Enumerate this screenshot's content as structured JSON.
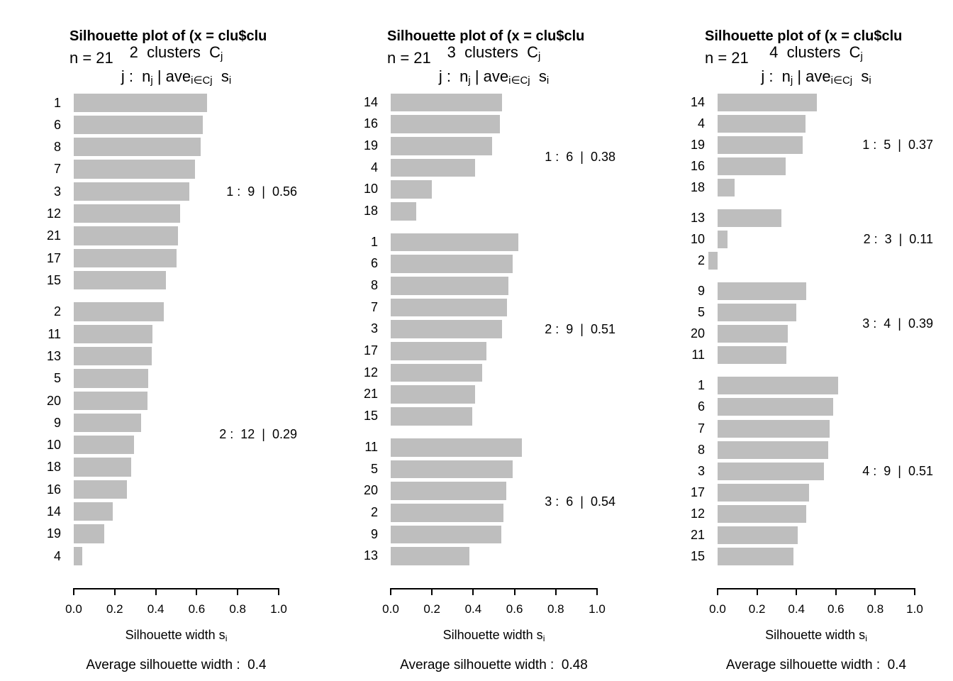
{
  "chart_data": {
    "type": "bar",
    "orientation": "horizontal",
    "panels": [
      {
        "title": "Silhouette plot of (x = clu$clu",
        "n_label": "n = 21",
        "k_label_parts": [
          {
            "t": "2  clusters  C"
          },
          {
            "t": "j",
            "sub": true
          }
        ],
        "header_parts": [
          {
            "t": "j :  n"
          },
          {
            "t": "j",
            "sub": true
          },
          {
            "t": " | ave"
          },
          {
            "t": "i∈Cj",
            "sub": true
          },
          {
            "t": "  s"
          },
          {
            "t": "i",
            "sub": true
          }
        ],
        "xlabel_parts": [
          {
            "t": "Silhouette width s"
          },
          {
            "t": "i",
            "sub": true
          }
        ],
        "avg_label": "Average silhouette width :  0.4",
        "xlim": [
          0,
          1
        ],
        "ticks": [
          "0.0",
          "0.2",
          "0.4",
          "0.6",
          "0.8",
          "1.0"
        ],
        "clusters": [
          {
            "j": 1,
            "n": 9,
            "avg": 0.56,
            "annotation": "1 :  9  |  0.56",
            "items": [
              {
                "label": "1",
                "value": 0.65
              },
              {
                "label": "6",
                "value": 0.63
              },
              {
                "label": "8",
                "value": 0.62
              },
              {
                "label": "7",
                "value": 0.59
              },
              {
                "label": "3",
                "value": 0.565
              },
              {
                "label": "12",
                "value": 0.52
              },
              {
                "label": "21",
                "value": 0.51
              },
              {
                "label": "17",
                "value": 0.5
              },
              {
                "label": "15",
                "value": 0.45
              }
            ]
          },
          {
            "j": 2,
            "n": 12,
            "avg": 0.29,
            "annotation": "2 :  12  |  0.29",
            "items": [
              {
                "label": "2",
                "value": 0.44
              },
              {
                "label": "11",
                "value": 0.385
              },
              {
                "label": "13",
                "value": 0.38
              },
              {
                "label": "5",
                "value": 0.365
              },
              {
                "label": "20",
                "value": 0.36
              },
              {
                "label": "9",
                "value": 0.33
              },
              {
                "label": "10",
                "value": 0.295
              },
              {
                "label": "18",
                "value": 0.28
              },
              {
                "label": "16",
                "value": 0.26
              },
              {
                "label": "14",
                "value": 0.19
              },
              {
                "label": "19",
                "value": 0.15
              },
              {
                "label": "4",
                "value": 0.04
              }
            ]
          }
        ]
      },
      {
        "title": "Silhouette plot of (x = clu$clu",
        "n_label": "n = 21",
        "k_label_parts": [
          {
            "t": "3  clusters  C"
          },
          {
            "t": "j",
            "sub": true
          }
        ],
        "header_parts": [
          {
            "t": "j :  n"
          },
          {
            "t": "j",
            "sub": true
          },
          {
            "t": " | ave"
          },
          {
            "t": "i∈Cj",
            "sub": true
          },
          {
            "t": "  s"
          },
          {
            "t": "i",
            "sub": true
          }
        ],
        "xlabel_parts": [
          {
            "t": "Silhouette width s"
          },
          {
            "t": "i",
            "sub": true
          }
        ],
        "avg_label": "Average silhouette width :  0.48",
        "xlim": [
          0,
          1
        ],
        "ticks": [
          "0.0",
          "0.2",
          "0.4",
          "0.6",
          "0.8",
          "1.0"
        ],
        "clusters": [
          {
            "j": 1,
            "n": 6,
            "avg": 0.38,
            "annotation": "1 :  6  |  0.38",
            "items": [
              {
                "label": "14",
                "value": 0.54
              },
              {
                "label": "16",
                "value": 0.53
              },
              {
                "label": "19",
                "value": 0.49
              },
              {
                "label": "4",
                "value": 0.41
              },
              {
                "label": "10",
                "value": 0.2
              },
              {
                "label": "18",
                "value": 0.125
              }
            ]
          },
          {
            "j": 2,
            "n": 9,
            "avg": 0.51,
            "annotation": "2 :  9  |  0.51",
            "items": [
              {
                "label": "1",
                "value": 0.62
              },
              {
                "label": "6",
                "value": 0.59
              },
              {
                "label": "8",
                "value": 0.57
              },
              {
                "label": "7",
                "value": 0.565
              },
              {
                "label": "3",
                "value": 0.54
              },
              {
                "label": "17",
                "value": 0.465
              },
              {
                "label": "12",
                "value": 0.445
              },
              {
                "label": "21",
                "value": 0.41
              },
              {
                "label": "15",
                "value": 0.395
              }
            ]
          },
          {
            "j": 3,
            "n": 6,
            "avg": 0.54,
            "annotation": "3 :  6  |  0.54",
            "items": [
              {
                "label": "11",
                "value": 0.635
              },
              {
                "label": "5",
                "value": 0.59
              },
              {
                "label": "20",
                "value": 0.56
              },
              {
                "label": "2",
                "value": 0.545
              },
              {
                "label": "9",
                "value": 0.535
              },
              {
                "label": "13",
                "value": 0.38
              }
            ]
          }
        ]
      },
      {
        "title": "Silhouette plot of (x = clu$clu",
        "n_label": "n = 21",
        "k_label_parts": [
          {
            "t": "4  clusters  C"
          },
          {
            "t": "j",
            "sub": true
          }
        ],
        "header_parts": [
          {
            "t": "j :  n"
          },
          {
            "t": "j",
            "sub": true
          },
          {
            "t": " | ave"
          },
          {
            "t": "i∈Cj",
            "sub": true
          },
          {
            "t": "  s"
          },
          {
            "t": "i",
            "sub": true
          }
        ],
        "xlabel_parts": [
          {
            "t": "Silhouette width s"
          },
          {
            "t": "i",
            "sub": true
          }
        ],
        "avg_label": "Average silhouette width :  0.4",
        "xlim": [
          0,
          1
        ],
        "ticks": [
          "0.0",
          "0.2",
          "0.4",
          "0.6",
          "0.8",
          "1.0"
        ],
        "clusters": [
          {
            "j": 1,
            "n": 5,
            "avg": 0.37,
            "annotation": "1 :  5  |  0.37",
            "items": [
              {
                "label": "14",
                "value": 0.505
              },
              {
                "label": "4",
                "value": 0.445
              },
              {
                "label": "19",
                "value": 0.43
              },
              {
                "label": "16",
                "value": 0.345
              },
              {
                "label": "18",
                "value": 0.085
              }
            ]
          },
          {
            "j": 2,
            "n": 3,
            "avg": 0.11,
            "annotation": "2 :  3  |  0.11",
            "items": [
              {
                "label": "13",
                "value": 0.325
              },
              {
                "label": "10",
                "value": 0.05
              },
              {
                "label": "2",
                "value": -0.045
              }
            ]
          },
          {
            "j": 3,
            "n": 4,
            "avg": 0.39,
            "annotation": "3 :  4  |  0.39",
            "items": [
              {
                "label": "9",
                "value": 0.45
              },
              {
                "label": "5",
                "value": 0.4
              },
              {
                "label": "20",
                "value": 0.355
              },
              {
                "label": "11",
                "value": 0.35
              }
            ]
          },
          {
            "j": 4,
            "n": 9,
            "avg": 0.51,
            "annotation": "4 :  9  |  0.51",
            "items": [
              {
                "label": "1",
                "value": 0.61
              },
              {
                "label": "6",
                "value": 0.585
              },
              {
                "label": "7",
                "value": 0.57
              },
              {
                "label": "8",
                "value": 0.56
              },
              {
                "label": "3",
                "value": 0.54
              },
              {
                "label": "17",
                "value": 0.465
              },
              {
                "label": "12",
                "value": 0.45
              },
              {
                "label": "21",
                "value": 0.405
              },
              {
                "label": "15",
                "value": 0.385
              }
            ]
          }
        ]
      }
    ]
  }
}
